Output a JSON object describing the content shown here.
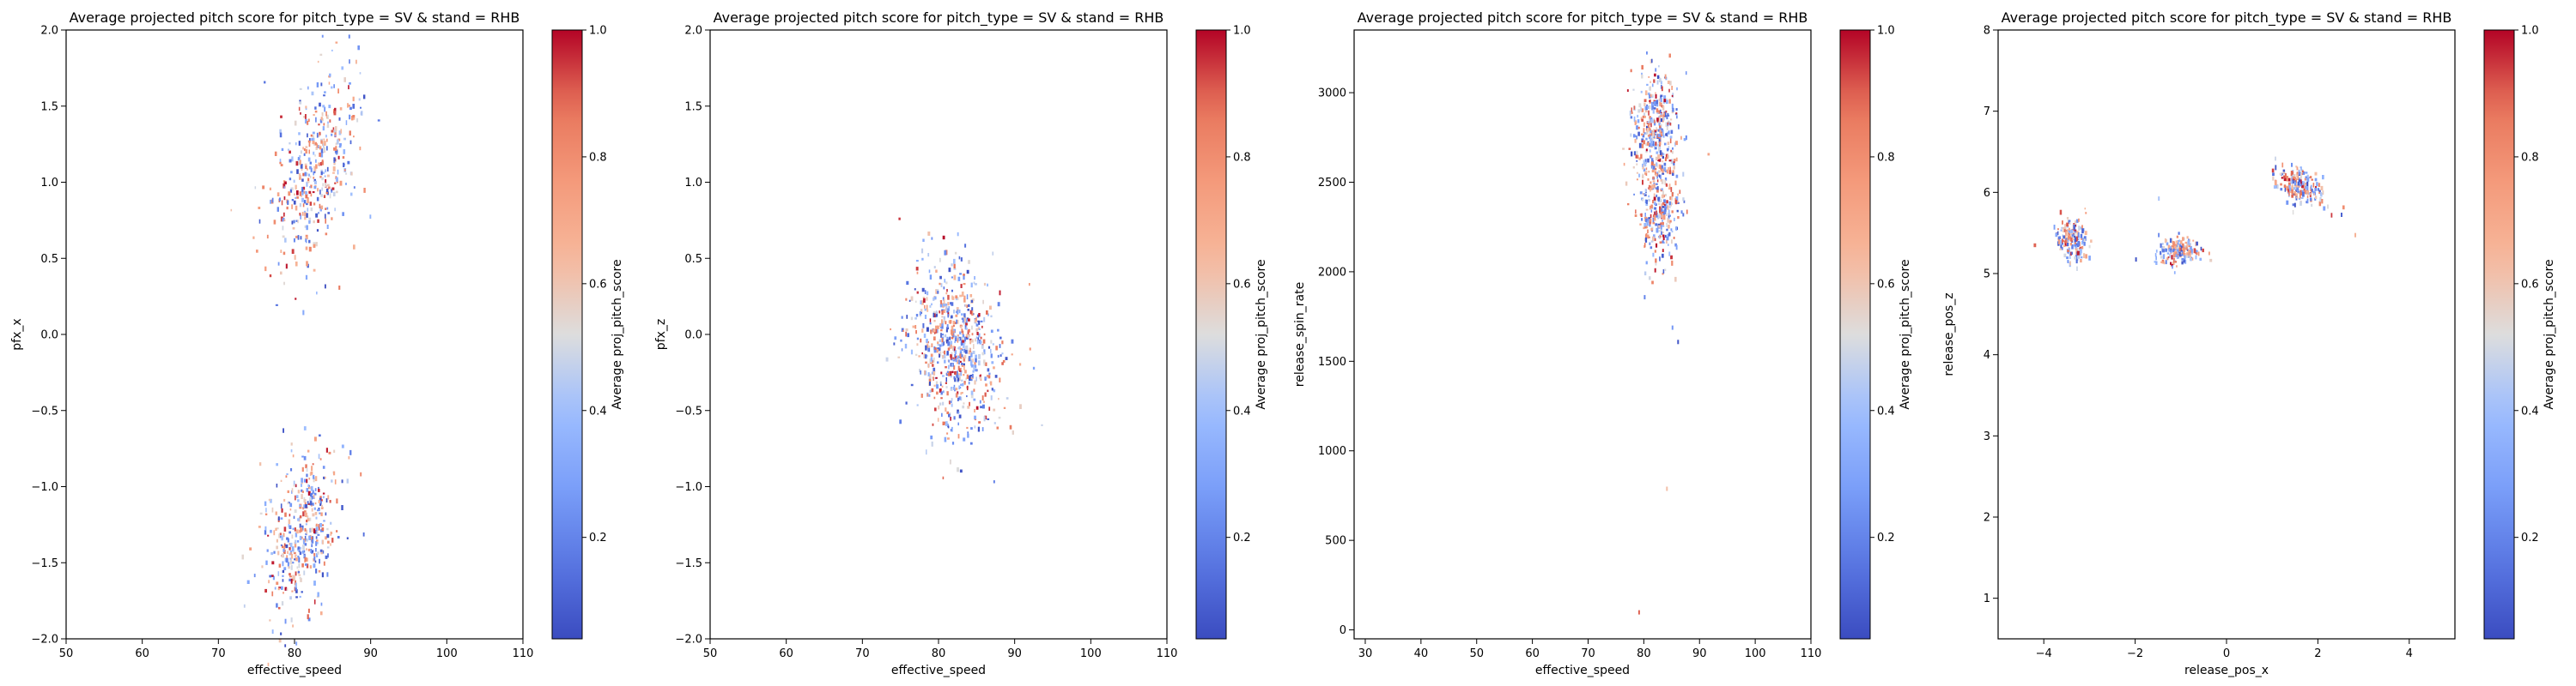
{
  "colorbar_label": "Average proj_pitch_score",
  "colorbar_ticks": [
    0.2,
    0.4,
    0.6,
    0.8,
    1.0
  ],
  "colormap": {
    "name": "coolwarm",
    "low": "#3b4cc0",
    "mid": "#dddddd",
    "high": "#b40426"
  },
  "chart_data": [
    {
      "type": "heatmap",
      "title": "Average projected pitch score for pitch_type = SV & stand = RHB",
      "xlabel": "effective_speed",
      "ylabel": "pfx_x",
      "xlim": [
        50,
        110
      ],
      "ylim": [
        -2.0,
        2.0
      ],
      "xticks": [
        50,
        60,
        70,
        80,
        90,
        100,
        110
      ],
      "yticks": [
        -2.0,
        -1.5,
        -1.0,
        -0.5,
        0.0,
        0.5,
        1.0,
        1.5,
        2.0
      ],
      "clusters": [
        {
          "cx": 82.5,
          "cy": 1.1,
          "sx": 2.6,
          "sy": 0.33,
          "n": 420,
          "rot": -0.35
        },
        {
          "cx": 80.8,
          "cy": -1.3,
          "sx": 2.3,
          "sy": 0.28,
          "n": 420,
          "rot": -0.3
        }
      ]
    },
    {
      "type": "heatmap",
      "title": "Average projected pitch score for pitch_type = SV & stand = RHB",
      "xlabel": "effective_speed",
      "ylabel": "pfx_z",
      "xlim": [
        50,
        110
      ],
      "ylim": [
        -2.0,
        2.0
      ],
      "xticks": [
        50,
        60,
        70,
        80,
        90,
        100,
        110
      ],
      "yticks": [
        -2.0,
        -1.5,
        -1.0,
        -0.5,
        0.0,
        0.5,
        1.0,
        1.5,
        2.0
      ],
      "clusters": [
        {
          "cx": 82.0,
          "cy": -0.08,
          "sx": 2.9,
          "sy": 0.3,
          "n": 700,
          "rot": 0.25
        }
      ]
    },
    {
      "type": "heatmap",
      "title": "Average projected pitch score for pitch_type = SV & stand = RHB",
      "xlabel": "effective_speed",
      "ylabel": "release_spin_rate",
      "xlim": [
        28,
        110
      ],
      "ylim": [
        -50,
        3350
      ],
      "xticks": [
        30,
        40,
        50,
        60,
        70,
        80,
        90,
        100,
        110
      ],
      "yticks": [
        0,
        500,
        1000,
        1500,
        2000,
        2500,
        3000
      ],
      "clusters": [
        {
          "cx": 82.0,
          "cy": 2800,
          "sx": 2.2,
          "sy": 150,
          "n": 380,
          "rot": 0
        },
        {
          "cx": 82.5,
          "cy": 2330,
          "sx": 1.8,
          "sy": 140,
          "n": 260,
          "rot": 0
        }
      ],
      "outliers": [
        [
          85,
          1700
        ],
        [
          86,
          1620
        ],
        [
          84,
          800
        ],
        [
          79,
          110
        ],
        [
          80,
          1870
        ]
      ]
    },
    {
      "type": "heatmap",
      "title": "Average projected pitch score for pitch_type = SV & stand = RHB",
      "xlabel": "release_pos_x",
      "ylabel": "release_pos_z",
      "xlim": [
        -5,
        5
      ],
      "ylim": [
        0.5,
        8.0
      ],
      "xticks": [
        -4,
        -2,
        0,
        2,
        4
      ],
      "yticks": [
        1,
        2,
        3,
        4,
        5,
        6,
        7,
        8
      ],
      "clusters": [
        {
          "cx": -3.4,
          "cy": 5.45,
          "sx": 0.17,
          "sy": 0.14,
          "n": 170,
          "rot": 0.3
        },
        {
          "cx": -1.1,
          "cy": 5.3,
          "sx": 0.25,
          "sy": 0.08,
          "n": 170,
          "rot": 0.1
        },
        {
          "cx": 1.6,
          "cy": 6.1,
          "sx": 0.28,
          "sy": 0.1,
          "n": 190,
          "rot": -0.4
        }
      ],
      "outliers": [
        [
          2.2,
          5.85
        ],
        [
          2.5,
          5.75
        ],
        [
          -2.0,
          5.2
        ],
        [
          -1.5,
          5.95
        ],
        [
          2.8,
          5.5
        ]
      ]
    }
  ]
}
